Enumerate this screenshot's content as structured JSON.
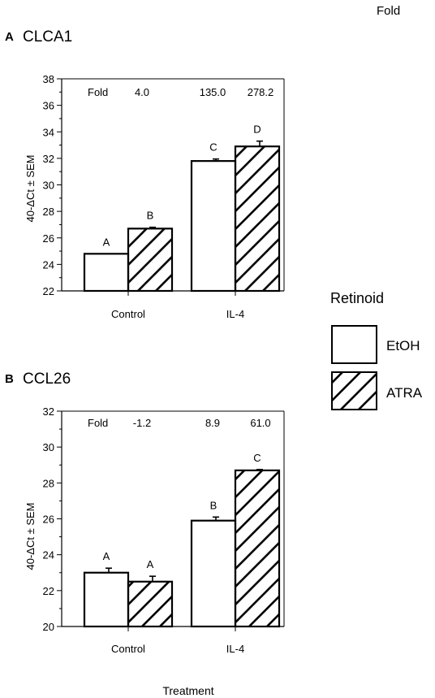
{
  "header_fold": "Fold",
  "x_title": "Treatment",
  "legend": {
    "title": "Retinoid",
    "items": [
      {
        "label": "EtOH",
        "pattern": "open"
      },
      {
        "label": "ATRA",
        "pattern": "hatched"
      }
    ]
  },
  "chart_data": [
    {
      "type": "bar",
      "panel_letter": "A",
      "title": "CLCA1",
      "ylabel": "40-ΔCt ± SEM",
      "ylim": [
        22,
        38
      ],
      "yticks": [
        22,
        24,
        26,
        28,
        30,
        32,
        34,
        36,
        38
      ],
      "categories": [
        "Control",
        "IL-4"
      ],
      "fold_label": "Fold",
      "fold_values": [
        "4.0",
        "135.0",
        "278.2"
      ],
      "series": [
        {
          "name": "EtOH",
          "values": [
            24.8,
            31.8
          ],
          "errors": [
            0.0,
            0.15
          ],
          "sig": [
            "A",
            "C"
          ]
        },
        {
          "name": "ATRA",
          "values": [
            26.7,
            32.9
          ],
          "errors": [
            0.1,
            0.4
          ],
          "sig": [
            "B",
            "D"
          ]
        }
      ]
    },
    {
      "type": "bar",
      "panel_letter": "B",
      "title": "CCL26",
      "ylabel": "40-ΔCt ± SEM",
      "ylim": [
        20,
        32
      ],
      "yticks": [
        20,
        22,
        24,
        26,
        28,
        30,
        32
      ],
      "categories": [
        "Control",
        "IL-4"
      ],
      "fold_label": "Fold",
      "fold_values": [
        "-1.2",
        "8.9",
        "61.0"
      ],
      "series": [
        {
          "name": "EtOH",
          "values": [
            23.0,
            25.9
          ],
          "errors": [
            0.25,
            0.2
          ],
          "sig": [
            "A",
            "B"
          ]
        },
        {
          "name": "ATRA",
          "values": [
            22.5,
            28.7
          ],
          "errors": [
            0.3,
            0.05
          ],
          "sig": [
            "A",
            "C"
          ]
        }
      ]
    }
  ]
}
